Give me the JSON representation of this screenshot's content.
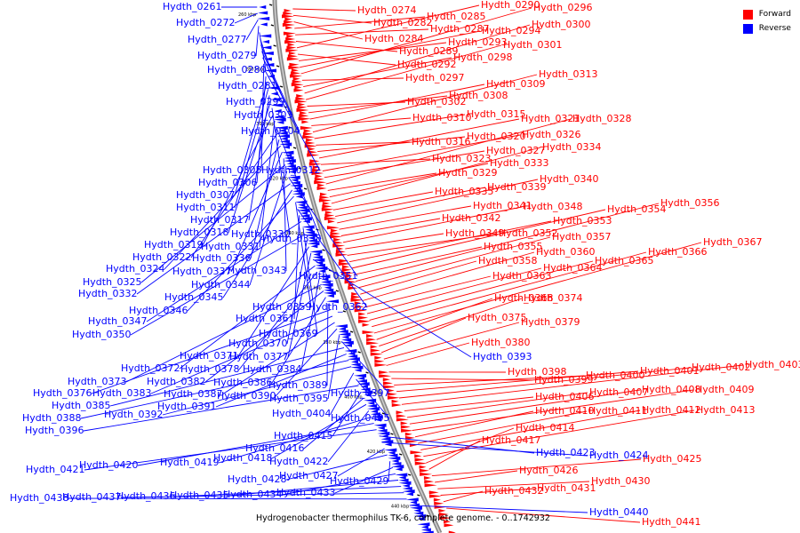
{
  "caption": "Hydrogenobacter thermophilus TK-6, complete genome. - 0..1742932",
  "legend": [
    {
      "label": "Forward",
      "color": "#ff0000"
    },
    {
      "label": "Reverse",
      "color": "#0000ff"
    }
  ],
  "ticks": [
    "260 kbp",
    "280 kbp",
    "300 kbp",
    "320 kbp",
    "340 kbp",
    "360 kbp",
    "380 kbp",
    "400 kbp",
    "420 kbp",
    "440 kbp"
  ],
  "forward_labels": [
    "Hydth_0274",
    "Hydth_0282",
    "Hydth_0284",
    "Hydth_0285",
    "Hydth_0287",
    "Hydth_0289",
    "Hydth_0290",
    "Hydth_0292",
    "Hydth_0293",
    "Hydth_0294",
    "Hydth_0296",
    "Hydth_0297",
    "Hydth_0298",
    "Hydth_0300",
    "Hydth_0301",
    "Hydth_0302",
    "Hydth_0308",
    "Hydth_0309",
    "Hydth_0310",
    "Hydth_0313",
    "Hydth_0315",
    "Hydth_0316",
    "Hydth_0320",
    "Hydth_0321",
    "Hydth_0323",
    "Hydth_0326",
    "Hydth_0327",
    "Hydth_0328",
    "Hydth_0329",
    "Hydth_0333",
    "Hydth_0334",
    "Hydth_0335",
    "Hydth_0339",
    "Hydth_0340",
    "Hydth_0341",
    "Hydth_0342",
    "Hydth_0348",
    "Hydth_0349",
    "Hydth_0352",
    "Hydth_0353",
    "Hydth_0354",
    "Hydth_0355",
    "Hydth_0356",
    "Hydth_0357",
    "Hydth_0358",
    "Hydth_0360",
    "Hydth_0363",
    "Hydth_0364",
    "Hydth_0365",
    "Hydth_0366",
    "Hydth_0367",
    "Hydth_0368",
    "Hydth_0374",
    "Hydth_0375",
    "Hydth_0379",
    "Hydth_0380",
    "Hydth_0398",
    "Hydth_0399",
    "Hydth_0400",
    "Hydth_0401",
    "Hydth_0402",
    "Hydth_0403",
    "Hydth_0406",
    "Hydth_0407",
    "Hydth_0408",
    "Hydth_0409",
    "Hydth_0410",
    "Hydth_0411",
    "Hydth_0412",
    "Hydth_0413",
    "Hydth_0414",
    "Hydth_0417",
    "Hydth_0425",
    "Hydth_0426",
    "Hydth_0430",
    "Hydth_0431",
    "Hydth_0432",
    "Hydth_0441"
  ],
  "reverse_labels": [
    "Hydth_0261",
    "Hydth_0272",
    "Hydth_0277",
    "Hydth_0279",
    "Hydth_0280",
    "Hydth_0281",
    "Hydth_0299",
    "Hydth_0303",
    "Hydth_0304",
    "Hydth_0305",
    "Hydth_0312",
    "Hydth_0306",
    "Hydth_0307",
    "Hydth_0311",
    "Hydth_0317",
    "Hydth_0318",
    "Hydth_0330",
    "Hydth_0319",
    "Hydth_0331",
    "Hydth_0338",
    "Hydth_0322",
    "Hydth_0336",
    "Hydth_0324",
    "Hydth_0337",
    "Hydth_0343",
    "Hydth_0325",
    "Hydth_0344",
    "Hydth_0351",
    "Hydth_0332",
    "Hydth_0345",
    "Hydth_0346",
    "Hydth_0359",
    "Hydth_0362",
    "Hydth_0361",
    "Hydth_0347",
    "Hydth_0369",
    "Hydth_0350",
    "Hydth_0370",
    "Hydth_0371",
    "Hydth_0377",
    "Hydth_0393",
    "Hydth_0372",
    "Hydth_0378",
    "Hydth_0384",
    "Hydth_0373",
    "Hydth_0382",
    "Hydth_0386",
    "Hydth_0389",
    "Hydth_0376",
    "Hydth_0383",
    "Hydth_0387",
    "Hydth_0390",
    "Hydth_0395",
    "Hydth_0397",
    "Hydth_0385",
    "Hydth_0391",
    "Hydth_0388",
    "Hydth_0392",
    "Hydth_0404",
    "Hydth_0405",
    "Hydth_0396",
    "Hydth_0415",
    "Hydth_0416",
    "Hydth_0418",
    "Hydth_0422",
    "Hydth_0419",
    "Hydth_0420",
    "Hydth_0421",
    "Hydth_0423",
    "Hydth_0424",
    "Hydth_0427",
    "Hydth_0428",
    "Hydth_0429",
    "Hydth_0433",
    "Hydth_0434",
    "Hydth_0435",
    "Hydth_0436",
    "Hydth_0437",
    "Hydth_0438",
    "Hydth_0440"
  ]
}
